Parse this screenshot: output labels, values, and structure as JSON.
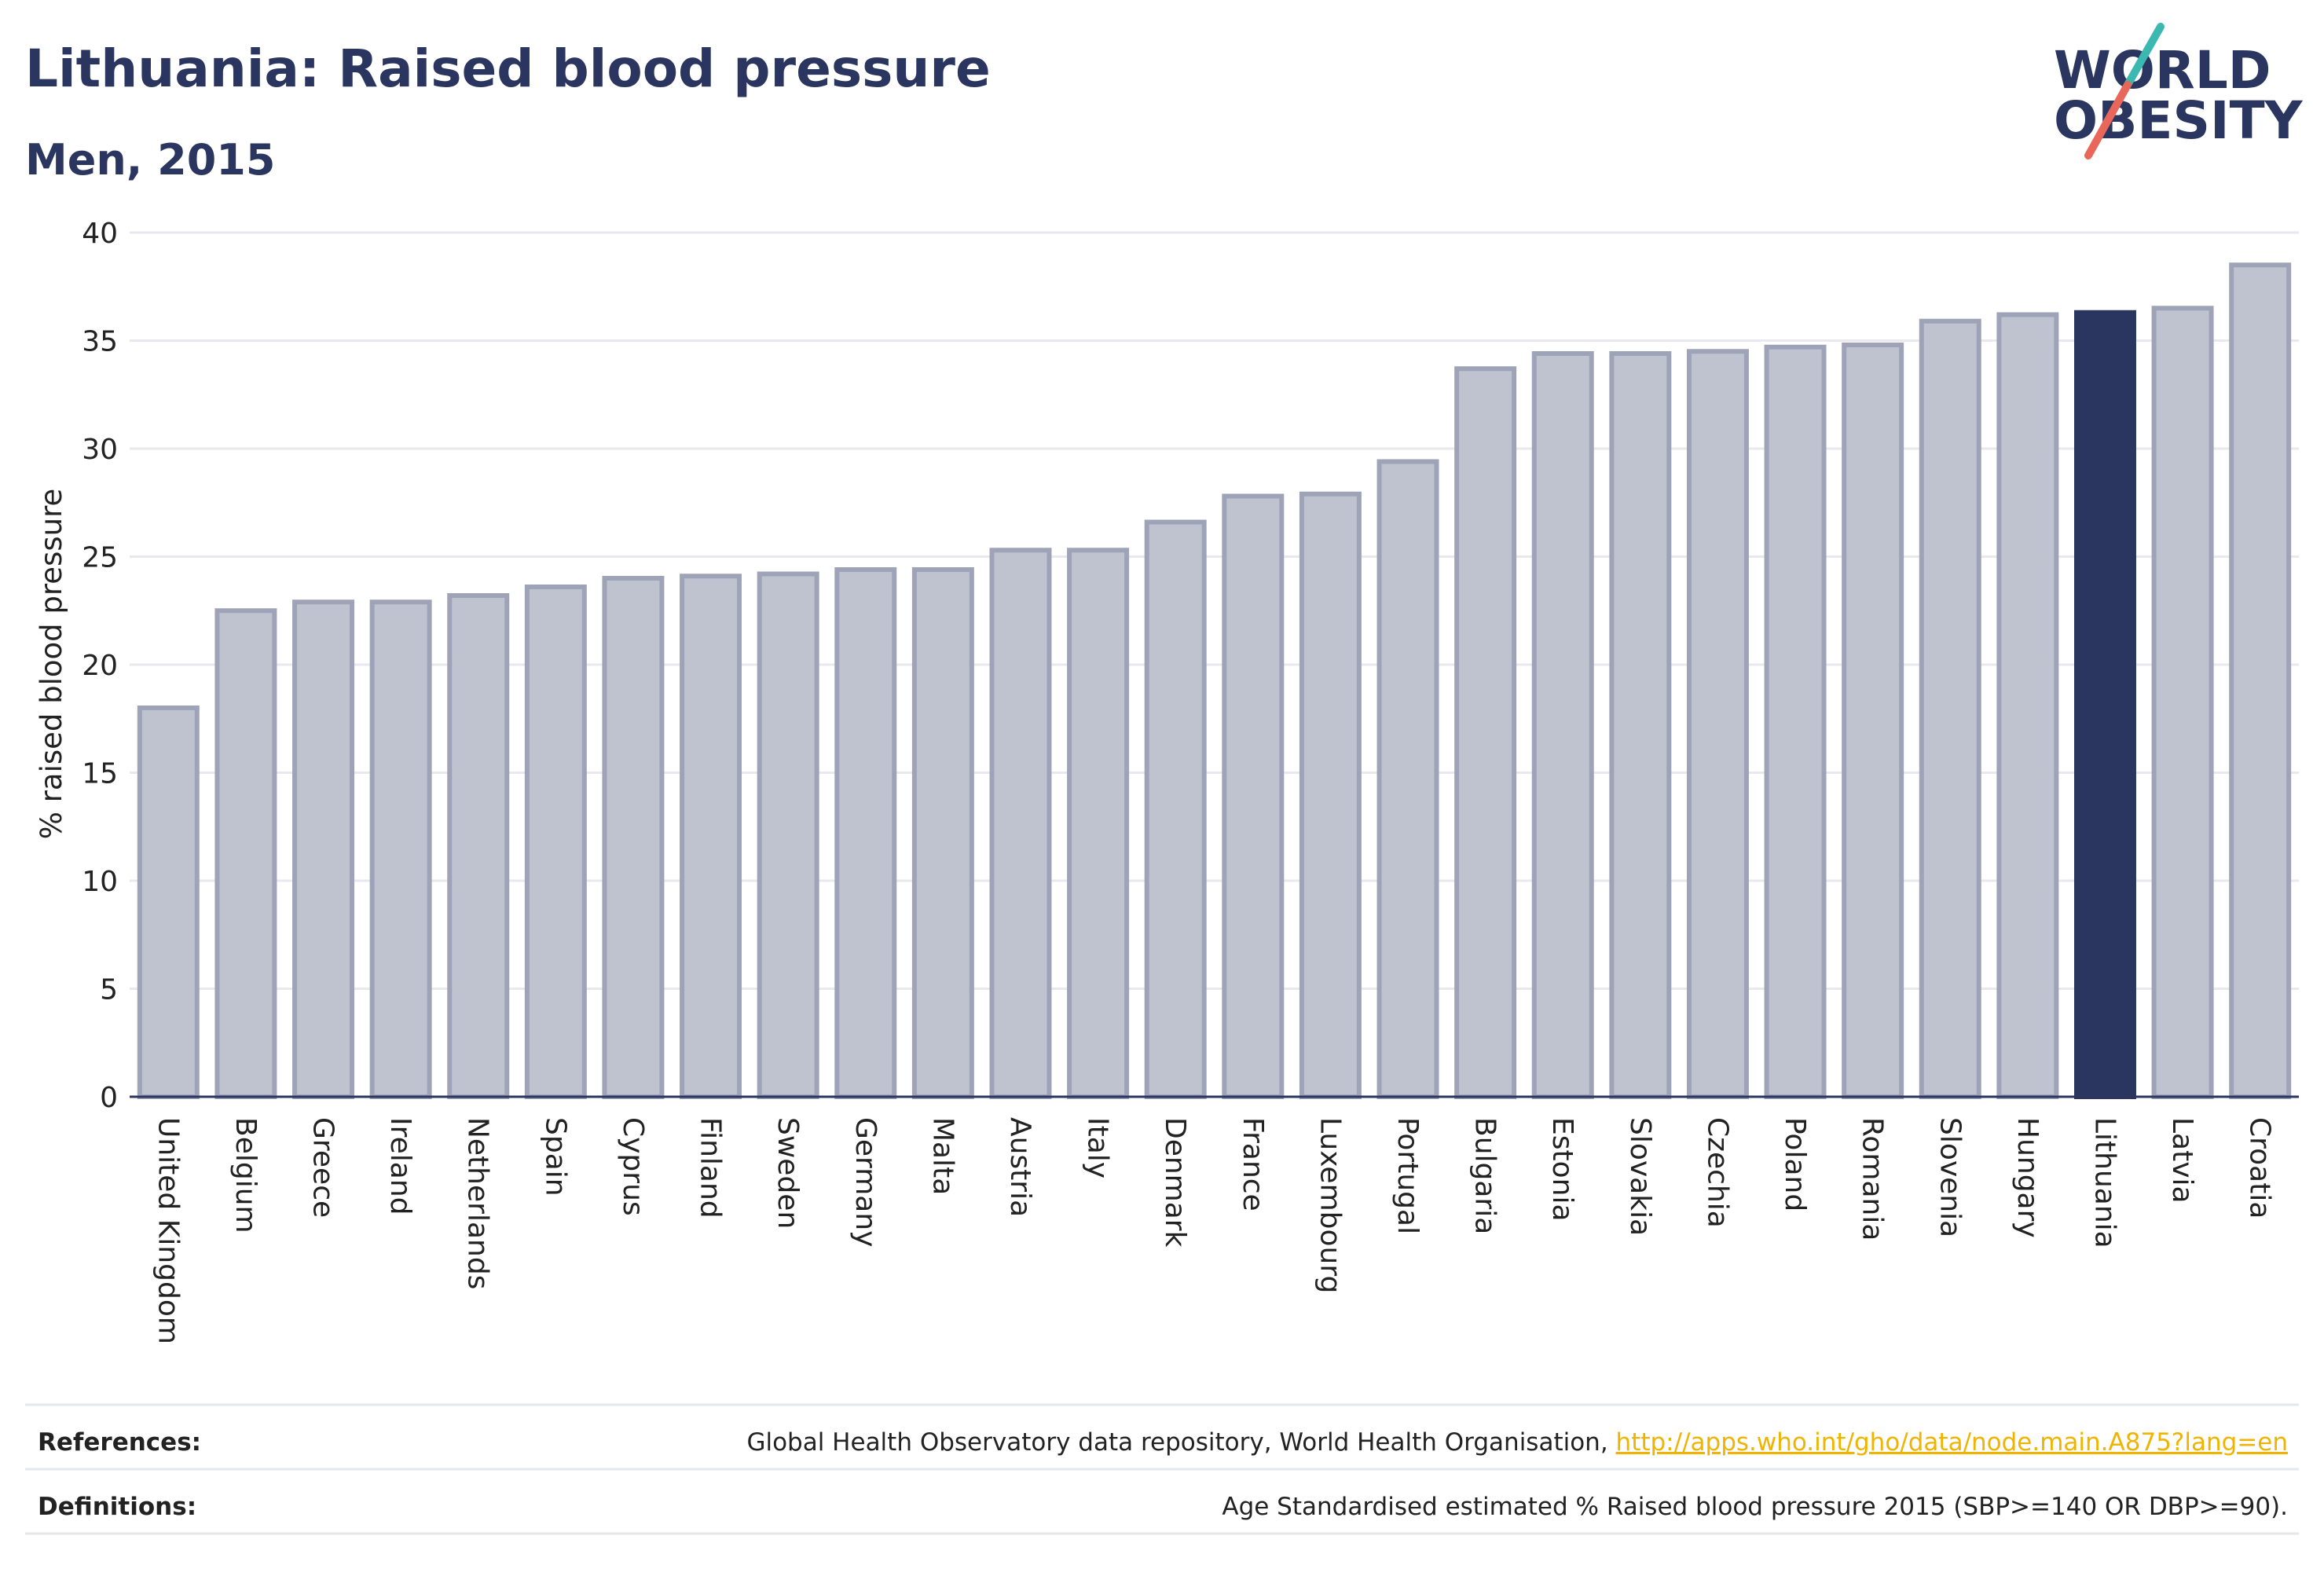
{
  "header": {
    "title": "Lithuania: Raised blood pressure",
    "subtitle": "Men, 2015"
  },
  "logo": {
    "line1": "WORLD",
    "line2": "OBESITY",
    "colors": {
      "text": "#2b3660",
      "slash_top": "#3bb8b0",
      "slash_bottom": "#e8675a"
    }
  },
  "footer": {
    "references_label": "References:",
    "references_text": "Global Health Observatory data repository, World Health Organisation, ",
    "references_link": "http://apps.who.int/gho/data/node.main.A875?lang=en",
    "definitions_label": "Definitions:",
    "definitions_text": "Age Standardised estimated % Raised blood pressure 2015 (SBP>=140 OR DBP>=90)."
  },
  "colors": {
    "bar_fill": "#bfc2cf",
    "bar_stroke": "#9ea3b8",
    "highlight_fill": "#2b3660",
    "gridline": "#e8e8ee",
    "axis_line": "#2b3660"
  },
  "chart_data": {
    "type": "bar",
    "title": "Lithuania: Raised blood pressure",
    "subtitle": "Men, 2015",
    "xlabel": "",
    "ylabel": "% raised blood pressure",
    "ylim": [
      0,
      40
    ],
    "yticks": [
      0,
      5,
      10,
      15,
      20,
      25,
      30,
      35,
      40
    ],
    "grid": true,
    "highlight": "Lithuania",
    "categories": [
      "United Kingdom",
      "Belgium",
      "Greece",
      "Ireland",
      "Netherlands",
      "Spain",
      "Cyprus",
      "Finland",
      "Sweden",
      "Germany",
      "Malta",
      "Austria",
      "Italy",
      "Denmark",
      "France",
      "Luxembourg",
      "Portugal",
      "Bulgaria",
      "Estonia",
      "Slovakia",
      "Czechia",
      "Poland",
      "Romania",
      "Slovenia",
      "Hungary",
      "Lithuania",
      "Latvia",
      "Croatia"
    ],
    "values": [
      18.0,
      22.5,
      22.9,
      22.9,
      23.2,
      23.6,
      24.0,
      24.1,
      24.2,
      24.4,
      24.4,
      25.3,
      25.3,
      26.6,
      27.8,
      27.9,
      29.4,
      33.7,
      34.4,
      34.4,
      34.5,
      34.7,
      34.8,
      35.9,
      36.2,
      36.3,
      36.5,
      38.5
    ]
  }
}
